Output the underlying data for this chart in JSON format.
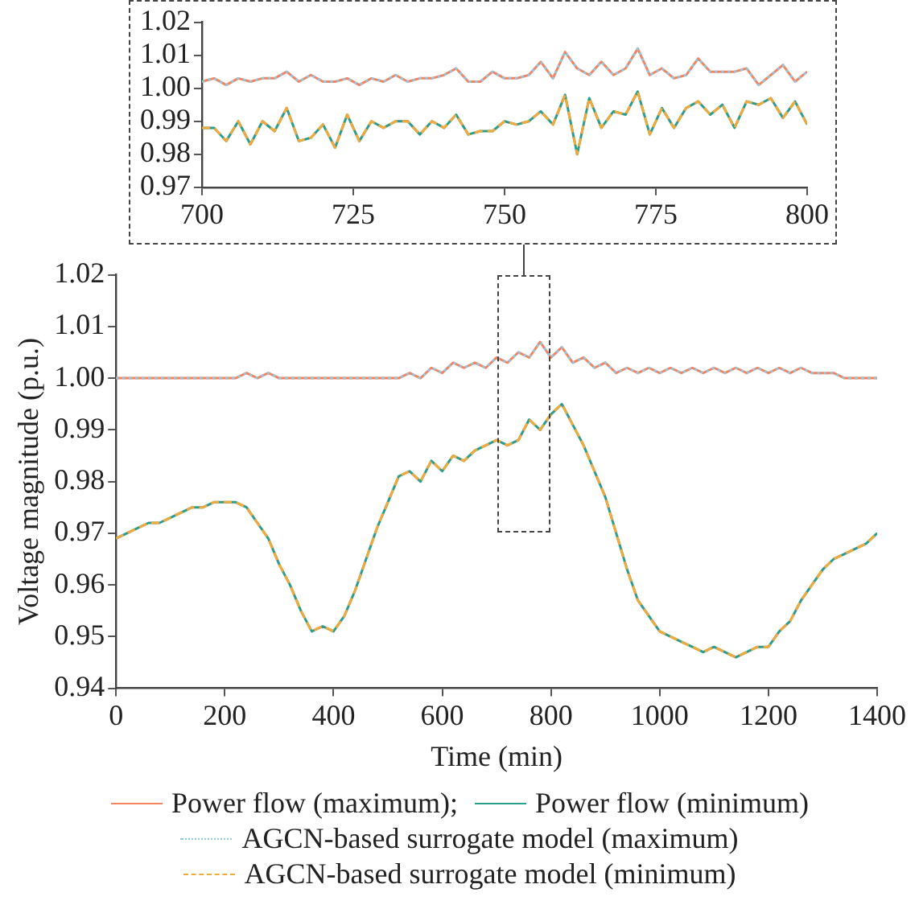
{
  "chart_data": [
    {
      "type": "line",
      "marker": "none",
      "x": [
        700,
        702,
        704,
        706,
        708,
        710,
        712,
        714,
        716,
        718,
        720,
        722,
        724,
        726,
        728,
        730,
        732,
        734,
        736,
        738,
        740,
        742,
        744,
        746,
        748,
        750,
        752,
        754,
        756,
        758,
        760,
        762,
        764,
        766,
        768,
        770,
        772,
        774,
        776,
        778,
        780,
        782,
        784,
        786,
        788,
        790,
        792,
        794,
        796,
        798,
        800
      ],
      "xlim": [
        700,
        800
      ],
      "xticks": [
        700,
        725,
        750,
        775,
        800
      ],
      "ylim": [
        0.97,
        1.02
      ],
      "yticks": [
        {
          "value": 0.97,
          "label": "0.97"
        },
        {
          "value": 0.98,
          "label": "0.98"
        },
        {
          "value": 0.99,
          "label": "0.99"
        },
        {
          "value": 1.0,
          "label": "1.00"
        },
        {
          "value": 1.01,
          "label": "1.01"
        },
        {
          "value": 1.02,
          "label": "1.02"
        }
      ],
      "series": [
        {
          "color": "#f4845f",
          "line_style": "solid",
          "values": [
            1.002,
            1.003,
            1.001,
            1.003,
            1.002,
            1.003,
            1.003,
            1.005,
            1.002,
            1.004,
            1.002,
            1.002,
            1.003,
            1.001,
            1.003,
            1.002,
            1.004,
            1.002,
            1.003,
            1.003,
            1.004,
            1.006,
            1.002,
            1.002,
            1.005,
            1.003,
            1.003,
            1.004,
            1.008,
            1.003,
            1.011,
            1.006,
            1.004,
            1.008,
            1.004,
            1.006,
            1.012,
            1.004,
            1.006,
            1.003,
            1.004,
            1.009,
            1.005,
            1.005,
            1.005,
            1.006,
            1.001,
            1.004,
            1.007,
            1.002,
            1.005
          ]
        },
        {
          "color": "#2a9d8f",
          "line_style": "solid",
          "values": [
            0.988,
            0.988,
            0.984,
            0.99,
            0.983,
            0.99,
            0.987,
            0.994,
            0.984,
            0.985,
            0.989,
            0.982,
            0.992,
            0.984,
            0.99,
            0.988,
            0.99,
            0.99,
            0.986,
            0.99,
            0.988,
            0.992,
            0.986,
            0.987,
            0.987,
            0.99,
            0.989,
            0.99,
            0.993,
            0.989,
            0.998,
            0.98,
            0.997,
            0.988,
            0.993,
            0.992,
            0.999,
            0.986,
            0.994,
            0.988,
            0.994,
            0.996,
            0.992,
            0.995,
            0.988,
            0.996,
            0.995,
            0.997,
            0.991,
            0.996,
            0.989
          ]
        },
        {
          "color": "#8ecae6",
          "line_style": "dotted",
          "values": [
            1.002,
            1.003,
            1.001,
            1.003,
            1.002,
            1.003,
            1.003,
            1.005,
            1.002,
            1.004,
            1.002,
            1.002,
            1.003,
            1.001,
            1.003,
            1.002,
            1.004,
            1.002,
            1.003,
            1.003,
            1.004,
            1.006,
            1.002,
            1.002,
            1.005,
            1.003,
            1.003,
            1.004,
            1.008,
            1.003,
            1.011,
            1.006,
            1.004,
            1.008,
            1.004,
            1.006,
            1.012,
            1.004,
            1.006,
            1.003,
            1.004,
            1.009,
            1.005,
            1.005,
            1.005,
            1.006,
            1.001,
            1.004,
            1.007,
            1.002,
            1.005
          ]
        },
        {
          "color": "#f4a93b",
          "line_style": "dashed",
          "values": [
            0.988,
            0.988,
            0.984,
            0.99,
            0.983,
            0.99,
            0.987,
            0.994,
            0.984,
            0.985,
            0.989,
            0.982,
            0.992,
            0.984,
            0.99,
            0.988,
            0.99,
            0.99,
            0.986,
            0.99,
            0.988,
            0.992,
            0.986,
            0.987,
            0.987,
            0.99,
            0.989,
            0.99,
            0.993,
            0.989,
            0.998,
            0.98,
            0.997,
            0.988,
            0.993,
            0.992,
            0.999,
            0.986,
            0.994,
            0.988,
            0.994,
            0.996,
            0.992,
            0.995,
            0.988,
            0.996,
            0.995,
            0.997,
            0.991,
            0.996,
            0.989
          ]
        }
      ]
    },
    {
      "type": "line",
      "marker": "none",
      "xlabel": "Time (min)",
      "ylabel": "Voltage magnitude (p.u.)",
      "legend": "bottom",
      "x": [
        0,
        20,
        40,
        60,
        80,
        100,
        120,
        140,
        160,
        180,
        200,
        220,
        240,
        260,
        280,
        300,
        320,
        340,
        360,
        380,
        400,
        420,
        440,
        460,
        480,
        500,
        520,
        540,
        560,
        580,
        600,
        620,
        640,
        660,
        680,
        700,
        720,
        740,
        760,
        780,
        800,
        820,
        840,
        860,
        880,
        900,
        920,
        940,
        960,
        980,
        1000,
        1020,
        1040,
        1060,
        1080,
        1100,
        1120,
        1140,
        1160,
        1180,
        1200,
        1220,
        1240,
        1260,
        1280,
        1300,
        1320,
        1340,
        1360,
        1380,
        1400
      ],
      "xlim": [
        0,
        1400
      ],
      "xticks": [
        0,
        200,
        400,
        600,
        800,
        1000,
        1200,
        1400
      ],
      "ylim": [
        0.94,
        1.02
      ],
      "yticks": [
        {
          "value": 0.94,
          "label": "0.94"
        },
        {
          "value": 0.95,
          "label": "0.95"
        },
        {
          "value": 0.96,
          "label": "0.96"
        },
        {
          "value": 0.97,
          "label": "0.97"
        },
        {
          "value": 0.98,
          "label": "0.98"
        },
        {
          "value": 0.99,
          "label": "0.99"
        },
        {
          "value": 1.0,
          "label": "1.00"
        },
        {
          "value": 1.01,
          "label": "1.01"
        },
        {
          "value": 1.02,
          "label": "1.02"
        }
      ],
      "series": [
        {
          "name": "Power flow (maximum);",
          "color": "#f4845f",
          "line_style": "solid",
          "values": [
            1.0,
            1.0,
            1.0,
            1.0,
            1.0,
            1.0,
            1.0,
            1.0,
            1.0,
            1.0,
            1.0,
            1.0,
            1.001,
            1.0,
            1.001,
            1.0,
            1.0,
            1.0,
            1.0,
            1.0,
            1.0,
            1.0,
            1.0,
            1.0,
            1.0,
            1.0,
            1.0,
            1.001,
            1.0,
            1.002,
            1.001,
            1.003,
            1.002,
            1.003,
            1.002,
            1.004,
            1.003,
            1.005,
            1.004,
            1.007,
            1.004,
            1.006,
            1.003,
            1.004,
            1.002,
            1.003,
            1.001,
            1.002,
            1.001,
            1.002,
            1.001,
            1.002,
            1.001,
            1.002,
            1.001,
            1.002,
            1.001,
            1.002,
            1.001,
            1.002,
            1.001,
            1.002,
            1.001,
            1.002,
            1.001,
            1.001,
            1.001,
            1.0,
            1.0,
            1.0,
            1.0
          ]
        },
        {
          "name": "Power flow (minimum)",
          "color": "#2a9d8f",
          "line_style": "solid",
          "values": [
            0.969,
            0.97,
            0.971,
            0.972,
            0.972,
            0.973,
            0.974,
            0.975,
            0.975,
            0.976,
            0.976,
            0.976,
            0.975,
            0.972,
            0.969,
            0.964,
            0.96,
            0.955,
            0.951,
            0.952,
            0.951,
            0.954,
            0.959,
            0.965,
            0.971,
            0.976,
            0.981,
            0.982,
            0.98,
            0.984,
            0.982,
            0.985,
            0.984,
            0.986,
            0.987,
            0.988,
            0.987,
            0.988,
            0.992,
            0.99,
            0.993,
            0.995,
            0.991,
            0.987,
            0.982,
            0.977,
            0.97,
            0.963,
            0.957,
            0.954,
            0.951,
            0.95,
            0.949,
            0.948,
            0.947,
            0.948,
            0.947,
            0.946,
            0.947,
            0.948,
            0.948,
            0.951,
            0.953,
            0.957,
            0.96,
            0.963,
            0.965,
            0.966,
            0.967,
            0.968,
            0.97
          ]
        },
        {
          "name": "AGCN-based surrogate model (maximum)",
          "color": "#8ecae6",
          "line_style": "dotted",
          "values": [
            1.0,
            1.0,
            1.0,
            1.0,
            1.0,
            1.0,
            1.0,
            1.0,
            1.0,
            1.0,
            1.0,
            1.0,
            1.001,
            1.0,
            1.001,
            1.0,
            1.0,
            1.0,
            1.0,
            1.0,
            1.0,
            1.0,
            1.0,
            1.0,
            1.0,
            1.0,
            1.0,
            1.001,
            1.0,
            1.002,
            1.001,
            1.003,
            1.002,
            1.003,
            1.002,
            1.004,
            1.003,
            1.005,
            1.004,
            1.007,
            1.004,
            1.006,
            1.003,
            1.004,
            1.002,
            1.003,
            1.001,
            1.002,
            1.001,
            1.002,
            1.001,
            1.002,
            1.001,
            1.002,
            1.001,
            1.002,
            1.001,
            1.002,
            1.001,
            1.002,
            1.001,
            1.002,
            1.001,
            1.002,
            1.001,
            1.001,
            1.001,
            1.0,
            1.0,
            1.0,
            1.0
          ]
        },
        {
          "name": "AGCN-based surrogate model (minimum)",
          "color": "#f4a93b",
          "line_style": "dashed",
          "values": [
            0.969,
            0.97,
            0.971,
            0.972,
            0.972,
            0.973,
            0.974,
            0.975,
            0.975,
            0.976,
            0.976,
            0.976,
            0.975,
            0.972,
            0.969,
            0.964,
            0.96,
            0.955,
            0.951,
            0.952,
            0.951,
            0.954,
            0.959,
            0.965,
            0.971,
            0.976,
            0.981,
            0.982,
            0.98,
            0.984,
            0.982,
            0.985,
            0.984,
            0.986,
            0.987,
            0.988,
            0.987,
            0.988,
            0.992,
            0.99,
            0.993,
            0.995,
            0.991,
            0.987,
            0.982,
            0.977,
            0.97,
            0.963,
            0.957,
            0.954,
            0.951,
            0.95,
            0.949,
            0.948,
            0.947,
            0.948,
            0.947,
            0.946,
            0.947,
            0.948,
            0.948,
            0.951,
            0.953,
            0.957,
            0.96,
            0.963,
            0.965,
            0.966,
            0.967,
            0.968,
            0.97
          ]
        }
      ]
    }
  ]
}
